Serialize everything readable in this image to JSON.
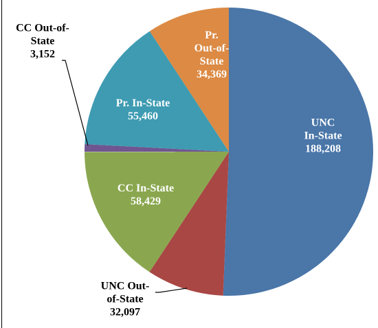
{
  "chart_data": {
    "type": "pie",
    "categories": [
      "UNC\nIn-State",
      "UNC Out-\nof-State",
      "CC In-State",
      "CC Out-of-\nState",
      "Pr. In-State",
      "Pr.\nOut-of-\nState"
    ],
    "values": [
      188208,
      32097,
      58429,
      3152,
      55460,
      34369
    ],
    "value_labels": [
      "188,208",
      "32,097",
      "58,429",
      "3,152",
      "55,460",
      "34,369"
    ],
    "colors": [
      "#4a76a8",
      "#a94744",
      "#8aa74f",
      "#6f5690",
      "#3e9bb2",
      "#dc8a44"
    ]
  }
}
